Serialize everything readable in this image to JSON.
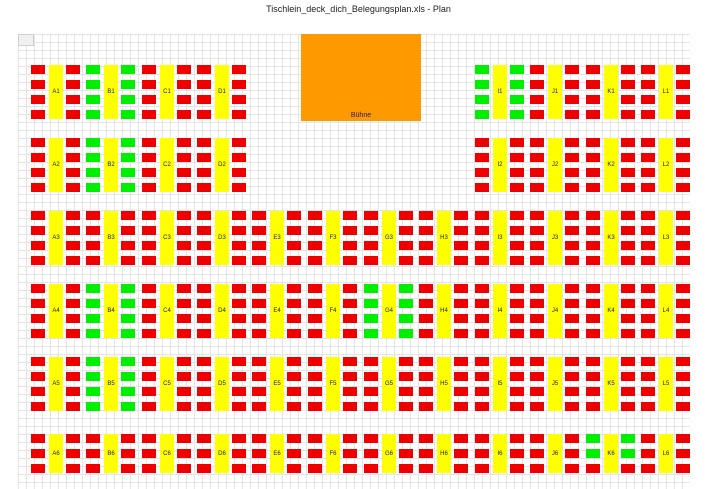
{
  "window": {
    "title": "Tischlein_deck_dich_Belegungsplan.xls - Plan"
  },
  "stage": {
    "label": "Bühne"
  },
  "colors": {
    "free": "#00ee00",
    "occupied": "#ee0000",
    "table": "#ffff00",
    "stage": "#ff9900"
  },
  "rows": [
    {
      "tables": [
        "A1",
        "B1",
        "C1",
        "D1",
        "I1",
        "J1",
        "K1",
        "L1"
      ]
    },
    {
      "tables": [
        "A2",
        "B2",
        "C2",
        "D2",
        "I2",
        "J2",
        "K2",
        "L2"
      ]
    },
    {
      "tables": [
        "A3",
        "B3",
        "C3",
        "D3",
        "E3",
        "F3",
        "G3",
        "H3",
        "I3",
        "J3",
        "K3",
        "L3"
      ]
    },
    {
      "tables": [
        "A4",
        "B4",
        "C4",
        "D4",
        "E4",
        "F4",
        "G4",
        "H4",
        "I4",
        "J4",
        "K4",
        "L4"
      ]
    },
    {
      "tables": [
        "A5",
        "B5",
        "C5",
        "D5",
        "E5",
        "F5",
        "G5",
        "H5",
        "I5",
        "J5",
        "K5",
        "L5"
      ]
    },
    {
      "tables": [
        "A6",
        "B6",
        "C6",
        "D6",
        "E6",
        "F6",
        "G6",
        "H6",
        "I6",
        "J6",
        "K6",
        "L6"
      ]
    }
  ],
  "free_seats": {
    "B1": [
      "L1",
      "L2",
      "L3",
      "L4",
      "R1",
      "R2",
      "R3",
      "R4"
    ],
    "I1": [
      "L1",
      "L2",
      "L3",
      "L4",
      "R1",
      "R2",
      "R3",
      "R4"
    ],
    "B2": [
      "L1",
      "L2",
      "L3",
      "L4",
      "R1",
      "R2",
      "R3",
      "R4"
    ],
    "B4": [
      "L1",
      "L2",
      "L3",
      "L4",
      "R1",
      "R2",
      "R3",
      "R4"
    ],
    "G4": [
      "L1",
      "L2",
      "L3",
      "L4",
      "R1",
      "R2",
      "R3",
      "R4"
    ],
    "B5": [
      "L1",
      "L2",
      "L3",
      "L4",
      "R1",
      "R2",
      "R3",
      "R4"
    ],
    "K6": [
      "L1",
      "L2",
      "R1",
      "R2"
    ]
  }
}
